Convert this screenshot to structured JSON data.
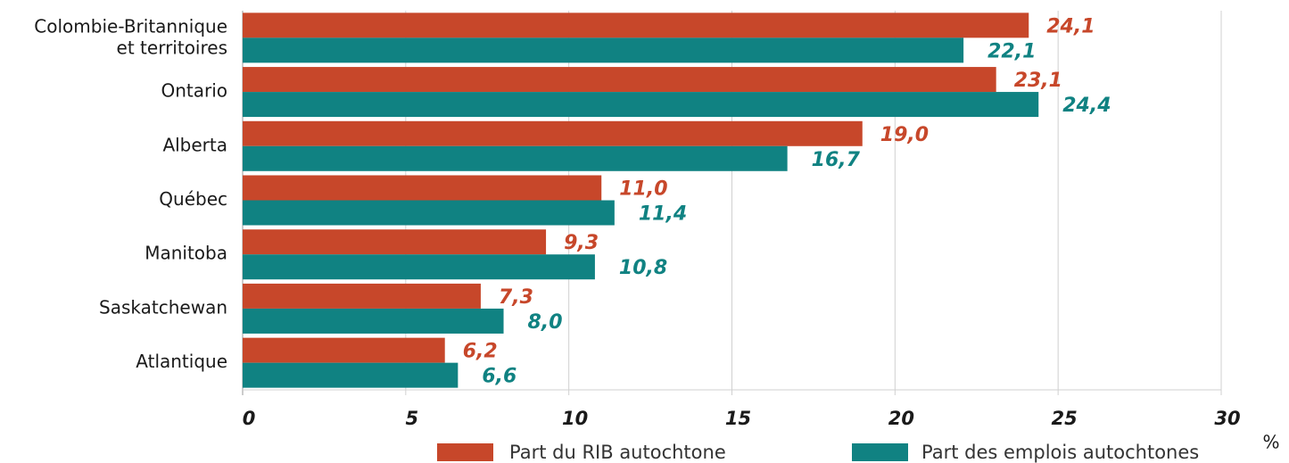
{
  "chart_data": {
    "type": "bar",
    "orientation": "horizontal",
    "categories": [
      "Colombie-Britannique\net territoires",
      "Ontario",
      "Alberta",
      "Québec",
      "Manitoba",
      "Saskatchewan",
      "Atlantique"
    ],
    "series": [
      {
        "name": "Part du RIB autochtone",
        "color": "#c7472a",
        "values": [
          24.1,
          23.1,
          19.0,
          11.0,
          9.3,
          7.3,
          6.2
        ],
        "value_labels": [
          "24,1",
          "23,1",
          "19,0",
          "11,0",
          "9,3",
          "7,3",
          "6,2"
        ]
      },
      {
        "name": "Part des emplois autochtones",
        "color": "#108282",
        "values": [
          22.1,
          24.4,
          16.7,
          11.4,
          10.8,
          8.0,
          6.6
        ],
        "value_labels": [
          "22,1",
          "24,4",
          "16,7",
          "11,4",
          "10,8",
          "8,0",
          "6,6"
        ]
      }
    ],
    "xlabel": "%",
    "xlim": [
      0,
      30
    ],
    "xticks": [
      0,
      5,
      10,
      15,
      20,
      25,
      30
    ],
    "grid": true
  }
}
